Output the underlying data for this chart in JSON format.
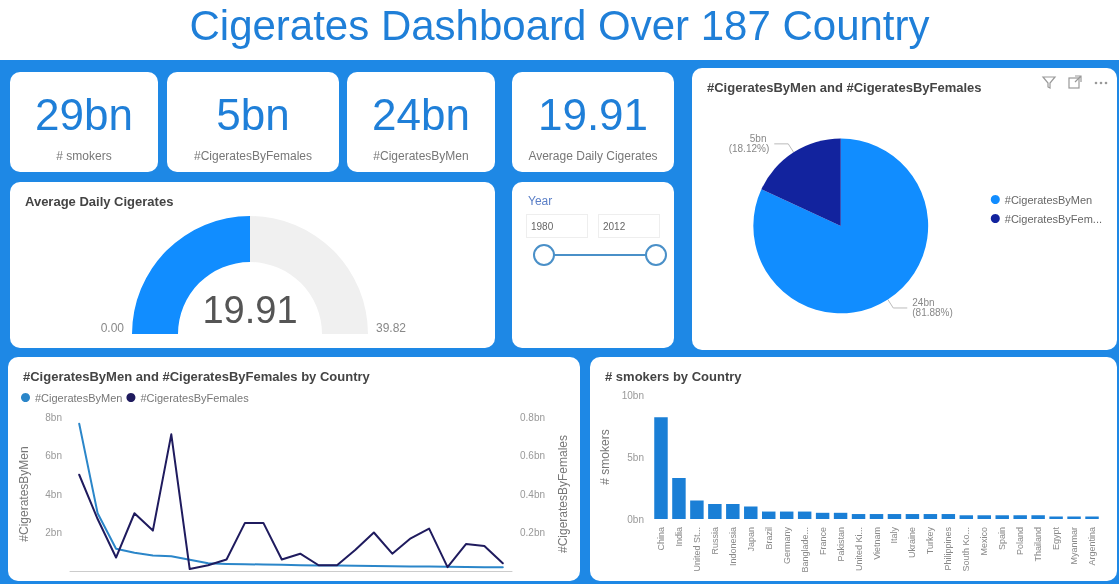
{
  "chart_data": [
    {
      "type": "other",
      "title": "Cigerates Dashboard Over 187 Country",
      "annotations": [
        "29bn",
        "# smokers",
        "5bn",
        "#CigeratesByFemales",
        "24bn",
        "#CigeratesByMen",
        "19.91",
        "Average Daily Cigerates"
      ]
    },
    {
      "type": "donut",
      "title": "Average Daily Cigerates",
      "categories": [
        null,
        null
      ],
      "values": [
        50,
        50
      ],
      "colors": [
        "#118dff",
        "#f0f0f0"
      ],
      "annotations": [
        "0.00",
        "19.91",
        "39.82"
      ]
    },
    {
      "type": "other",
      "title": "Year",
      "annotations": [
        "1980",
        "2012"
      ]
    },
    {
      "type": "pie",
      "title": "#CigeratesByMen and #CigeratesByFemales",
      "categories": [
        "#CigeratesByMen",
        "#CigeratesByFem..."
      ],
      "values": [
        81.88,
        18.12
      ],
      "colors": [
        "#118dff",
        "#12239e"
      ],
      "value_labels": [
        "24bn (81.88%)",
        "5bn (18.12%)"
      ],
      "legend": "right"
    },
    {
      "type": "line",
      "title": "#CigeratesByMen and #CigeratesByFemales by Country",
      "ylabel": "#CigeratesByMen",
      "y2label": "#CigeratesByFemales",
      "categories": [
        null,
        null,
        null,
        null,
        null,
        null,
        null,
        null,
        null,
        null,
        null,
        null,
        null,
        null,
        null,
        null,
        null,
        null,
        null,
        null,
        null,
        null,
        null,
        null
      ],
      "series": [
        {
          "name": "#CigeratesByMen",
          "color": "#2b86c9",
          "values": [
            7.65,
            3.0,
            1.16,
            0.95,
            0.81,
            0.77,
            0.58,
            0.4,
            0.37,
            0.35,
            0.34,
            0.32,
            0.3,
            0.29,
            0.28,
            0.27,
            0.26,
            0.25,
            0.24,
            0.23,
            0.22,
            0.21,
            0.2,
            0.2
          ]
        },
        {
          "name": "#CigeratesByFemales",
          "color": "#1f1b5e",
          "axis": "y2",
          "values": [
            0.5,
            0.27,
            0.07,
            0.3,
            0.21,
            0.71,
            0.01,
            0.03,
            0.06,
            0.25,
            0.25,
            0.06,
            0.09,
            0.03,
            0.03,
            0.11,
            0.2,
            0.09,
            0.17,
            0.22,
            0.02,
            0.14,
            0.13,
            0.04
          ]
        }
      ],
      "ylim": [
        0,
        8
      ],
      "yticks": [
        {
          "value": 2,
          "label": "2bn"
        },
        {
          "value": 4,
          "label": "4bn"
        },
        {
          "value": 6,
          "label": "6bn"
        },
        {
          "value": 8,
          "label": "8bn"
        }
      ],
      "y2lim": [
        0,
        0.8
      ],
      "y2ticks": [
        {
          "value": 0.2,
          "label": "0.2bn"
        },
        {
          "value": 0.4,
          "label": "0.4bn"
        },
        {
          "value": 0.6,
          "label": "0.6bn"
        },
        {
          "value": 0.8,
          "label": "0.8bn"
        }
      ],
      "legend": "top left",
      "marker": "none",
      "tick_labels": "y"
    },
    {
      "type": "bar",
      "title": "# smokers by Country",
      "ylabel": "# smokers",
      "color": "#1a7fd6",
      "categories": [
        "China",
        "India",
        "United St...",
        "Russia",
        "Indonesia",
        "Japan",
        "Brazil",
        "Germany",
        "Banglade...",
        "France",
        "Pakistan",
        "United Ki...",
        "Vietnam",
        "Italy",
        "Ukraine",
        "Turkey",
        "Philippines",
        "South Ko...",
        "Mexico",
        "Spain",
        "Poland",
        "Thailand",
        "Egypt",
        "Myanmar",
        "Argentina"
      ],
      "values": [
        8.2,
        3.3,
        1.5,
        1.2,
        1.2,
        1.0,
        0.6,
        0.6,
        0.6,
        0.5,
        0.5,
        0.4,
        0.4,
        0.4,
        0.4,
        0.4,
        0.4,
        0.3,
        0.3,
        0.3,
        0.3,
        0.3,
        0.2,
        0.2,
        0.2
      ],
      "ylim": [
        0,
        10
      ],
      "yticks": [
        {
          "value": 0,
          "label": "0bn"
        },
        {
          "value": 5,
          "label": "5bn"
        },
        {
          "value": 10,
          "label": "10bn"
        }
      ]
    }
  ]
}
